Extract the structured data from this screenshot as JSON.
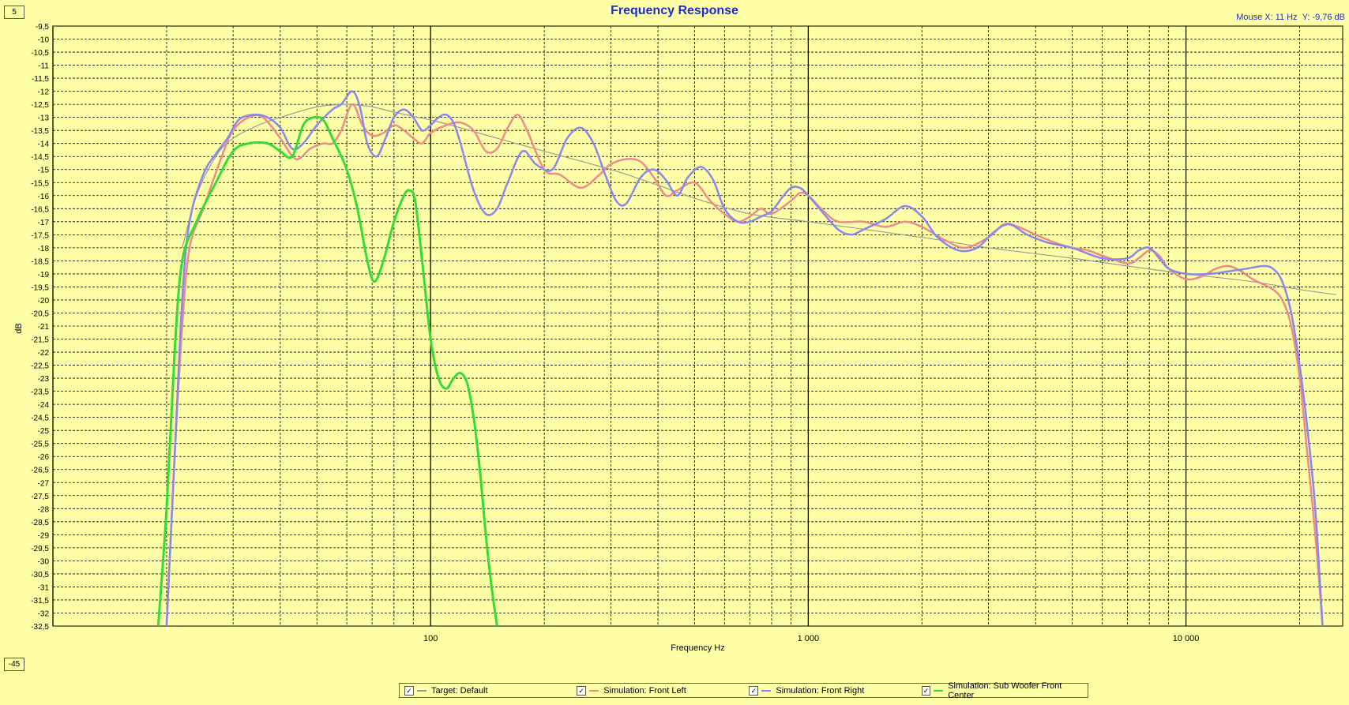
{
  "title": "Frequency Response",
  "mouse": {
    "x_label": "Mouse X: 11 Hz",
    "y_label": "Y: -9,76 dB"
  },
  "y_range_boxes": {
    "max": "5",
    "min": "-45"
  },
  "legend": [
    {
      "label": "Target: Default",
      "checked": "✓",
      "color": "#9a9a9a"
    },
    {
      "label": "Simulation: Front Left",
      "checked": "✓",
      "color": "#f08a8a"
    },
    {
      "label": "Simulation: Front Right",
      "checked": "✓",
      "color": "#8888ee"
    },
    {
      "label": "Simulation: Sub Woofer Front Center",
      "checked": "✓",
      "color": "#33dd33"
    }
  ],
  "chart_data": {
    "type": "line",
    "title": "Frequency Response",
    "xlabel": "Frequency Hz",
    "ylabel": "dB",
    "x_scale": "log",
    "xlim": [
      10,
      26000
    ],
    "ylim": [
      -32.5,
      -9.5
    ],
    "grid": true,
    "x_tick_labels": [
      {
        "value": 100,
        "label": "100"
      },
      {
        "value": 1000,
        "label": "1 000"
      },
      {
        "value": 10000,
        "label": "10 000"
      }
    ],
    "y_tick_labels": [
      "-9,5",
      "-10",
      "-10,5",
      "-11",
      "-11,5",
      "-12",
      "-12,5",
      "-13",
      "-13,5",
      "-14",
      "-14,5",
      "-15",
      "-15,5",
      "-16",
      "-16,5",
      "-17",
      "-17,5",
      "-18",
      "-18,5",
      "-19",
      "-19,5",
      "-20",
      "-20,5",
      "-21",
      "-21,5",
      "-22",
      "-22,5",
      "-23",
      "-23,5",
      "-24",
      "-24,5",
      "-25",
      "-25,5",
      "-26",
      "-26,5",
      "-27",
      "-27,5",
      "-28",
      "-28,5",
      "-29",
      "-29,5",
      "-30",
      "-30,5",
      "-31",
      "-31,5",
      "-32",
      "-32,5"
    ],
    "series": [
      {
        "name": "Target: Default",
        "color": "#9a9a9a",
        "width": 1.2,
        "points": [
          [
            22,
            -18
          ],
          [
            24,
            -16
          ],
          [
            27,
            -14.5
          ],
          [
            30,
            -13.8
          ],
          [
            35,
            -13.3
          ],
          [
            40,
            -13
          ],
          [
            50,
            -12.6
          ],
          [
            60,
            -12.5
          ],
          [
            70,
            -12.6
          ],
          [
            80,
            -12.8
          ],
          [
            100,
            -13.1
          ],
          [
            120,
            -13.4
          ],
          [
            150,
            -13.8
          ],
          [
            200,
            -14.3
          ],
          [
            300,
            -15
          ],
          [
            400,
            -15.6
          ],
          [
            500,
            -16.1
          ],
          [
            700,
            -16.7
          ],
          [
            1000,
            -17
          ],
          [
            2000,
            -17.6
          ],
          [
            3000,
            -18
          ],
          [
            5000,
            -18.4
          ],
          [
            7000,
            -18.7
          ],
          [
            10000,
            -19
          ],
          [
            15000,
            -19.3
          ],
          [
            20000,
            -19.6
          ],
          [
            25000,
            -19.8
          ]
        ]
      },
      {
        "name": "Simulation: Front Left",
        "color": "#f08a8a",
        "width": 2.5,
        "points": [
          [
            20,
            -32.5
          ],
          [
            21,
            -26
          ],
          [
            22,
            -21
          ],
          [
            23,
            -18
          ],
          [
            25,
            -16.5
          ],
          [
            28,
            -14.5
          ],
          [
            30,
            -13.5
          ],
          [
            33,
            -13
          ],
          [
            36,
            -13
          ],
          [
            40,
            -13.8
          ],
          [
            44,
            -14.6
          ],
          [
            48,
            -14.2
          ],
          [
            52,
            -14
          ],
          [
            55,
            -14
          ],
          [
            58,
            -13.5
          ],
          [
            62,
            -12.5
          ],
          [
            66,
            -13.3
          ],
          [
            70,
            -13.7
          ],
          [
            75,
            -13.6
          ],
          [
            80,
            -13.3
          ],
          [
            85,
            -13.5
          ],
          [
            90,
            -13.8
          ],
          [
            95,
            -14
          ],
          [
            100,
            -13.6
          ],
          [
            110,
            -13.3
          ],
          [
            120,
            -13.2
          ],
          [
            130,
            -13.5
          ],
          [
            140,
            -14.3
          ],
          [
            150,
            -14.2
          ],
          [
            160,
            -13.4
          ],
          [
            170,
            -12.9
          ],
          [
            180,
            -13.5
          ],
          [
            200,
            -15
          ],
          [
            220,
            -15.2
          ],
          [
            250,
            -15.7
          ],
          [
            280,
            -15.2
          ],
          [
            300,
            -14.8
          ],
          [
            330,
            -14.6
          ],
          [
            360,
            -14.7
          ],
          [
            390,
            -15.3
          ],
          [
            420,
            -16
          ],
          [
            450,
            -15.8
          ],
          [
            500,
            -15.5
          ],
          [
            550,
            -16.2
          ],
          [
            600,
            -16.7
          ],
          [
            650,
            -17
          ],
          [
            700,
            -16.8
          ],
          [
            750,
            -16.5
          ],
          [
            800,
            -16.7
          ],
          [
            900,
            -16.2
          ],
          [
            950,
            -15.9
          ],
          [
            1000,
            -16
          ],
          [
            1100,
            -16.6
          ],
          [
            1200,
            -17
          ],
          [
            1400,
            -17
          ],
          [
            1600,
            -17.2
          ],
          [
            1800,
            -17
          ],
          [
            2000,
            -17.2
          ],
          [
            2300,
            -17.7
          ],
          [
            2600,
            -18
          ],
          [
            3000,
            -17.6
          ],
          [
            3300,
            -17.1
          ],
          [
            3600,
            -17.2
          ],
          [
            4000,
            -17.5
          ],
          [
            4500,
            -17.8
          ],
          [
            5000,
            -18
          ],
          [
            5500,
            -18.1
          ],
          [
            6000,
            -18.3
          ],
          [
            7000,
            -18.6
          ],
          [
            7500,
            -18.4
          ],
          [
            8000,
            -18.1
          ],
          [
            8500,
            -18.3
          ],
          [
            9000,
            -18.8
          ],
          [
            10000,
            -19.2
          ],
          [
            11000,
            -19.1
          ],
          [
            12000,
            -18.8
          ],
          [
            13000,
            -18.7
          ],
          [
            14000,
            -18.9
          ],
          [
            15000,
            -19.2
          ],
          [
            16000,
            -19.4
          ],
          [
            17000,
            -19.6
          ],
          [
            18000,
            -20
          ],
          [
            19000,
            -21
          ],
          [
            20000,
            -23
          ],
          [
            21000,
            -26
          ],
          [
            22000,
            -29
          ],
          [
            23000,
            -32.5
          ]
        ]
      },
      {
        "name": "Simulation: Front Right",
        "color": "#8888ee",
        "width": 2.5,
        "points": [
          [
            20,
            -32.5
          ],
          [
            21,
            -26
          ],
          [
            22,
            -20
          ],
          [
            23,
            -17
          ],
          [
            25,
            -15.2
          ],
          [
            27,
            -14.4
          ],
          [
            29,
            -13.8
          ],
          [
            31,
            -13.1
          ],
          [
            34,
            -12.9
          ],
          [
            37,
            -13
          ],
          [
            40,
            -13.4
          ],
          [
            43,
            -14.2
          ],
          [
            46,
            -14
          ],
          [
            50,
            -13.3
          ],
          [
            55,
            -12.7
          ],
          [
            58,
            -12.5
          ],
          [
            62,
            -12
          ],
          [
            65,
            -12.6
          ],
          [
            68,
            -14
          ],
          [
            72,
            -14.5
          ],
          [
            76,
            -13.8
          ],
          [
            80,
            -13
          ],
          [
            85,
            -12.7
          ],
          [
            90,
            -13
          ],
          [
            95,
            -13.5
          ],
          [
            100,
            -13.3
          ],
          [
            105,
            -13
          ],
          [
            110,
            -12.9
          ],
          [
            115,
            -13.2
          ],
          [
            120,
            -14
          ],
          [
            130,
            -15.8
          ],
          [
            140,
            -16.7
          ],
          [
            150,
            -16.5
          ],
          [
            160,
            -15.5
          ],
          [
            175,
            -14.3
          ],
          [
            190,
            -14.8
          ],
          [
            210,
            -15
          ],
          [
            230,
            -13.8
          ],
          [
            250,
            -13.4
          ],
          [
            270,
            -14
          ],
          [
            290,
            -15.2
          ],
          [
            310,
            -16.2
          ],
          [
            330,
            -16.3
          ],
          [
            360,
            -15.3
          ],
          [
            390,
            -15
          ],
          [
            420,
            -15.4
          ],
          [
            450,
            -16
          ],
          [
            480,
            -15.3
          ],
          [
            520,
            -14.9
          ],
          [
            560,
            -15.4
          ],
          [
            600,
            -16.5
          ],
          [
            650,
            -17
          ],
          [
            700,
            -17
          ],
          [
            750,
            -16.8
          ],
          [
            800,
            -16.6
          ],
          [
            850,
            -16.1
          ],
          [
            900,
            -15.7
          ],
          [
            950,
            -15.7
          ],
          [
            1000,
            -16
          ],
          [
            1100,
            -16.7
          ],
          [
            1200,
            -17.3
          ],
          [
            1300,
            -17.5
          ],
          [
            1400,
            -17.3
          ],
          [
            1600,
            -16.9
          ],
          [
            1800,
            -16.4
          ],
          [
            2000,
            -16.8
          ],
          [
            2200,
            -17.6
          ],
          [
            2500,
            -18.1
          ],
          [
            2800,
            -18
          ],
          [
            3100,
            -17.4
          ],
          [
            3400,
            -17.1
          ],
          [
            3800,
            -17.5
          ],
          [
            4300,
            -17.8
          ],
          [
            5000,
            -18
          ],
          [
            6000,
            -18.4
          ],
          [
            7000,
            -18.4
          ],
          [
            7500,
            -18.1
          ],
          [
            8000,
            -18
          ],
          [
            8500,
            -18.4
          ],
          [
            9000,
            -18.8
          ],
          [
            10000,
            -19
          ],
          [
            11500,
            -19
          ],
          [
            13000,
            -18.9
          ],
          [
            14500,
            -18.8
          ],
          [
            16000,
            -18.7
          ],
          [
            17000,
            -18.8
          ],
          [
            18000,
            -19.3
          ],
          [
            19000,
            -20.5
          ],
          [
            20000,
            -22.5
          ],
          [
            21000,
            -25
          ],
          [
            22000,
            -28
          ],
          [
            23000,
            -32.5
          ]
        ]
      },
      {
        "name": "Simulation: Sub Woofer Front Center",
        "color": "#33dd33",
        "width": 3,
        "points": [
          [
            19,
            -32.5
          ],
          [
            20,
            -28
          ],
          [
            21,
            -22
          ],
          [
            22,
            -18.5
          ],
          [
            24,
            -17
          ],
          [
            27,
            -15.5
          ],
          [
            30,
            -14.3
          ],
          [
            33,
            -14
          ],
          [
            37,
            -14
          ],
          [
            40,
            -14.3
          ],
          [
            43,
            -14.5
          ],
          [
            46,
            -13.3
          ],
          [
            49,
            -13
          ],
          [
            52,
            -13.1
          ],
          [
            55,
            -13.8
          ],
          [
            60,
            -15
          ],
          [
            64,
            -16.5
          ],
          [
            68,
            -18.5
          ],
          [
            71,
            -19.3
          ],
          [
            75,
            -18.5
          ],
          [
            80,
            -17
          ],
          [
            85,
            -16
          ],
          [
            88,
            -15.8
          ],
          [
            91,
            -16.2
          ],
          [
            95,
            -18.5
          ],
          [
            100,
            -21.5
          ],
          [
            105,
            -23
          ],
          [
            110,
            -23.4
          ],
          [
            115,
            -23
          ],
          [
            120,
            -22.8
          ],
          [
            125,
            -23.2
          ],
          [
            130,
            -24.5
          ],
          [
            135,
            -26.5
          ],
          [
            140,
            -29
          ],
          [
            145,
            -31
          ],
          [
            150,
            -32.5
          ]
        ]
      }
    ]
  }
}
